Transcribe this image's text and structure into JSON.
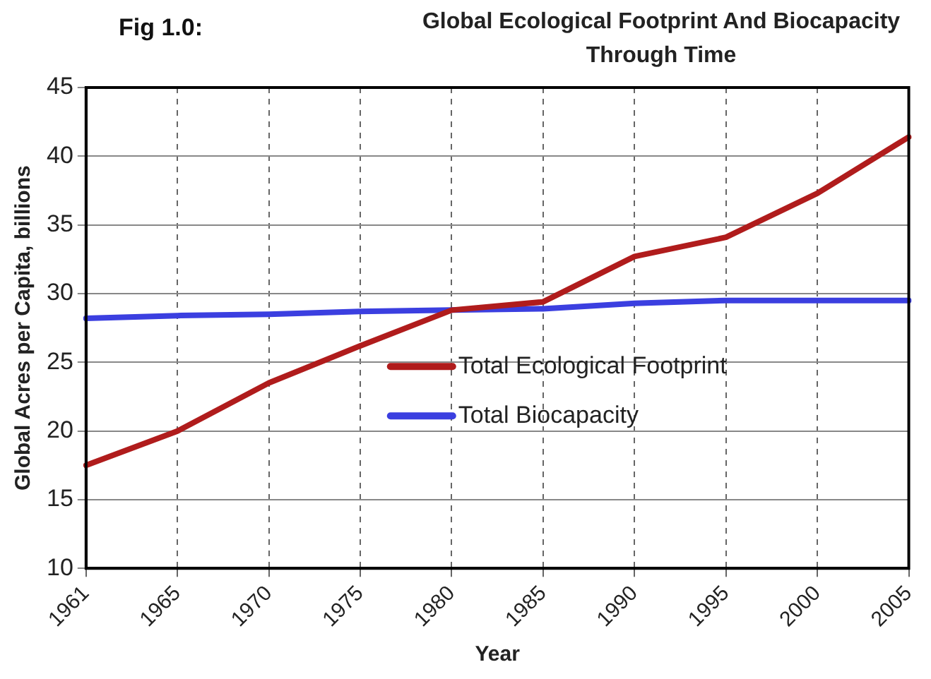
{
  "chart_data": {
    "type": "line",
    "title": "Global Ecological Footprint And Biocapacity Through Time",
    "annotations": [
      "Fig 1.0:"
    ],
    "xlabel": "Year",
    "ylabel": "Global Acres per Capita, billions",
    "categories": [
      "1961",
      "1965",
      "1970",
      "1975",
      "1980",
      "1985",
      "1990",
      "1995",
      "2000",
      "2005"
    ],
    "series": [
      {
        "name": "Total Ecological Footprint",
        "color": "#b01c1c",
        "values": [
          17.5,
          20,
          23.5,
          26.2,
          28.8,
          29.4,
          32.7,
          34.1,
          37.3,
          41.4
        ]
      },
      {
        "name": "Total Biocapacity",
        "color": "#3b3fe0",
        "values": [
          28.2,
          28.4,
          28.5,
          28.7,
          28.8,
          28.9,
          29.3,
          29.5,
          29.5,
          29.5
        ]
      }
    ],
    "ylim": [
      10,
      45
    ],
    "yticks": [
      10,
      15,
      20,
      25,
      30,
      35,
      40,
      45
    ],
    "grid": true,
    "legend": "bottom right",
    "marker": "none",
    "line_style": "solid"
  }
}
